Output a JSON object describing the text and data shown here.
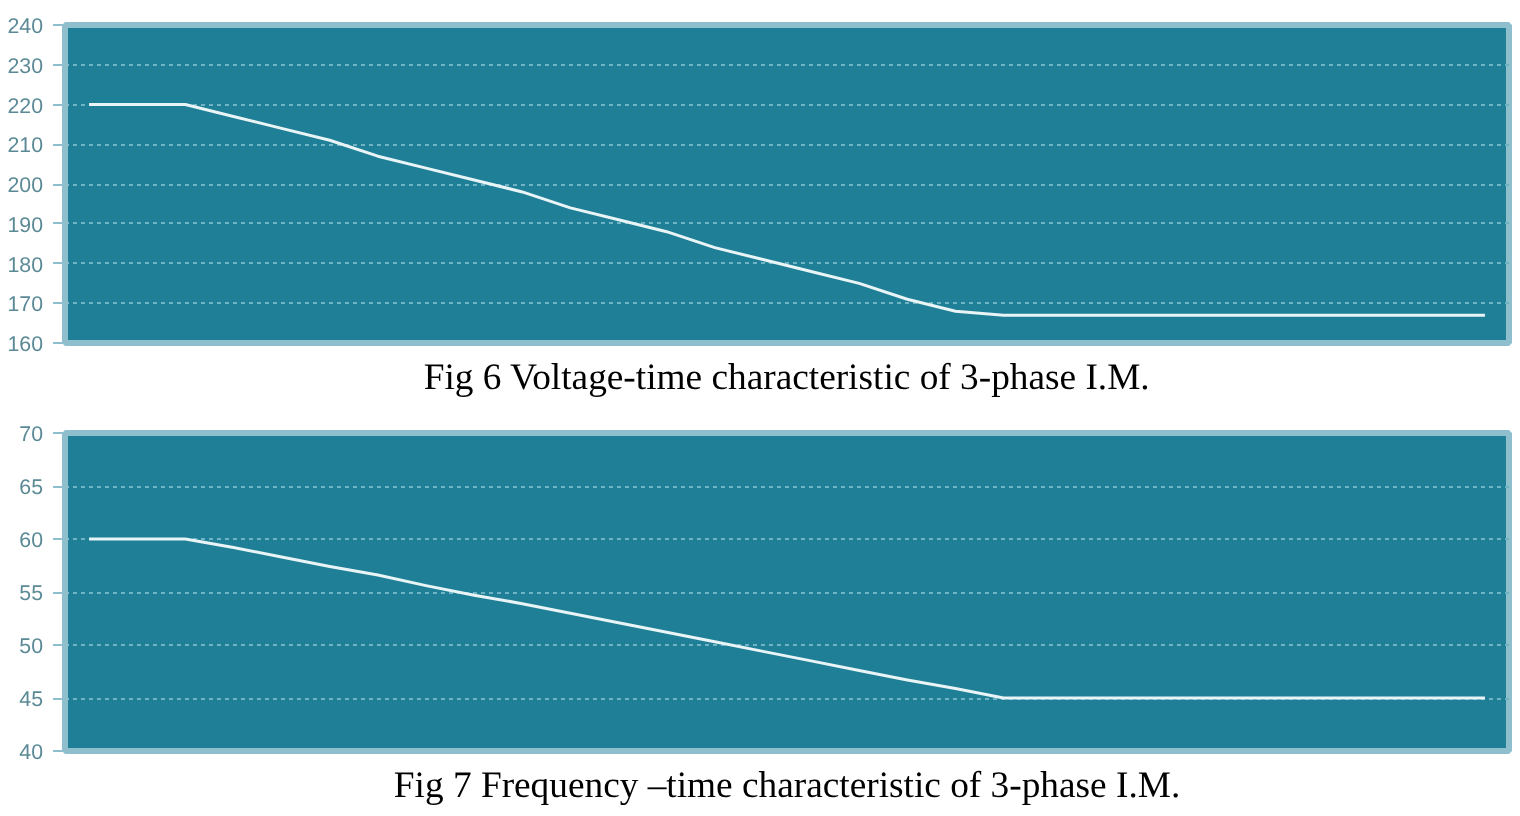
{
  "chart_data": [
    {
      "type": "line",
      "title": "Fig 6 Voltage-time characteristic of 3-phase I.M.",
      "categories": [
        null,
        null,
        null,
        null,
        null,
        null,
        null,
        null,
        null,
        null,
        null,
        null,
        null,
        null,
        null,
        null,
        null,
        null,
        null,
        null,
        null,
        null,
        null,
        null,
        null,
        null,
        null,
        null,
        null,
        null
      ],
      "series": [
        {
          "color": "#e8f4f6",
          "values": [
            220,
            220,
            220,
            217,
            214,
            211,
            207,
            204,
            201,
            198,
            194,
            191,
            188,
            184,
            181,
            178,
            175,
            171,
            168,
            167,
            167,
            167,
            167,
            167,
            167,
            167,
            167,
            167,
            167,
            167
          ]
        }
      ],
      "ylim": [
        160,
        240
      ],
      "yticks": [
        160,
        170,
        180,
        190,
        200,
        210,
        220,
        230,
        240
      ],
      "grid": "y",
      "tick_labels": "y",
      "marker": "none",
      "line_style": "solid"
    },
    {
      "type": "line",
      "title": "Fig 7 Frequency –time characteristic of 3-phase I.M.",
      "categories": [
        null,
        null,
        null,
        null,
        null,
        null,
        null,
        null,
        null,
        null,
        null,
        null,
        null,
        null,
        null,
        null,
        null,
        null,
        null,
        null,
        null,
        null,
        null,
        null,
        null,
        null,
        null,
        null,
        null,
        null
      ],
      "series": [
        {
          "color": "#e8f4f6",
          "values": [
            60,
            60,
            60,
            59.2,
            58.3,
            57.4,
            56.6,
            55.6,
            54.7,
            53.9,
            53.0,
            52.1,
            51.2,
            50.3,
            49.4,
            48.5,
            47.6,
            46.7,
            45.9,
            45,
            45,
            45,
            45,
            45,
            45,
            45,
            45,
            45,
            45,
            45
          ]
        }
      ],
      "ylim": [
        40,
        70
      ],
      "yticks": [
        40,
        45,
        50,
        55,
        60,
        65,
        70
      ],
      "grid": "y",
      "tick_labels": "y",
      "marker": "none",
      "line_style": "solid"
    }
  ]
}
